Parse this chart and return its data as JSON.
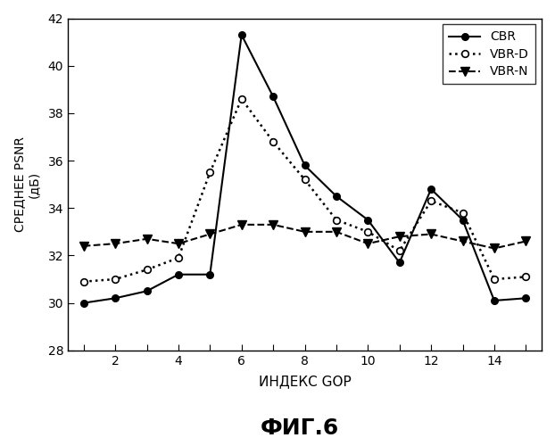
{
  "x": [
    1,
    2,
    3,
    4,
    5,
    6,
    7,
    8,
    9,
    10,
    11,
    12,
    13,
    14,
    15
  ],
  "cbr": [
    30.0,
    30.2,
    30.5,
    31.2,
    31.2,
    41.3,
    38.7,
    35.8,
    34.5,
    33.5,
    31.7,
    34.8,
    33.5,
    30.1,
    30.2
  ],
  "vbr_d": [
    30.9,
    31.0,
    31.4,
    31.9,
    35.5,
    38.6,
    36.8,
    35.2,
    33.5,
    33.0,
    32.2,
    34.3,
    33.8,
    31.0,
    31.1
  ],
  "vbr_n": [
    32.4,
    32.5,
    32.7,
    32.5,
    32.9,
    33.3,
    33.3,
    33.0,
    33.0,
    32.5,
    32.8,
    32.9,
    32.6,
    32.3,
    32.6
  ],
  "ylim": [
    28,
    42
  ],
  "xlim": [
    0.5,
    15.5
  ],
  "yticks": [
    28,
    30,
    32,
    34,
    36,
    38,
    40,
    42
  ],
  "xticks_all": [
    1,
    2,
    3,
    4,
    5,
    6,
    7,
    8,
    9,
    10,
    11,
    12,
    13,
    14,
    15
  ],
  "xticks_labels": [
    "",
    "2",
    "",
    "4",
    "",
    "6",
    "",
    "8",
    "",
    "10",
    "",
    "12",
    "",
    "14",
    ""
  ],
  "xlabel": "ИНДЕКС GOP",
  "ylabel_line1": "СРЕДНЕЕ PSNR",
  "ylabel_line2": "(дБ)",
  "title": "ФИГ.6",
  "legend_cbr": "CBR",
  "legend_vbr_d": "VBR-D",
  "legend_vbr_n": "VBR-N",
  "line_color": "#000000",
  "bg_color": "#ffffff",
  "xlabel_fontsize": 11,
  "ylabel_fontsize": 10,
  "tick_fontsize": 10,
  "legend_fontsize": 10,
  "title_fontsize": 18
}
